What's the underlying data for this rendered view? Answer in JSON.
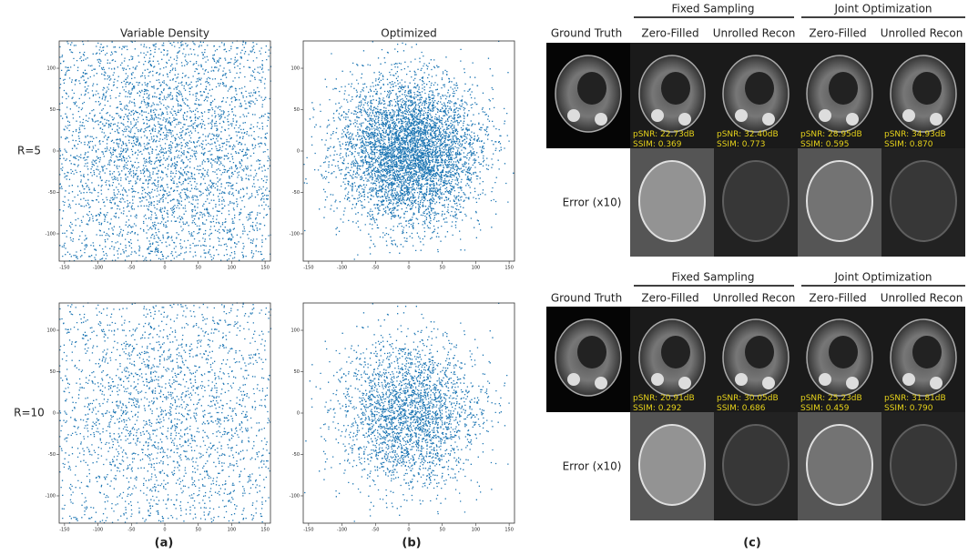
{
  "scatter": {
    "columns": [
      "Variable Density",
      "Optimized"
    ],
    "rows": [
      "R=5",
      "R=10"
    ],
    "xlim": [
      -158,
      158
    ],
    "ylim": [
      -133,
      133
    ],
    "xticks": [
      -150,
      -100,
      -50,
      0,
      50,
      100,
      150
    ],
    "yticks": [
      -100,
      -50,
      0,
      50,
      100
    ]
  },
  "recon": {
    "groups": [
      "Fixed Sampling",
      "Joint Optimization"
    ],
    "columns": [
      "Ground Truth",
      "Zero-Filled",
      "Unrolled Recon",
      "Zero-Filled",
      "Unrolled Recon"
    ],
    "error_label": "Error (x10)",
    "blocks": [
      {
        "metrics": [
          [
            "pSNR: 22.73dB",
            "SSIM: 0.369"
          ],
          [
            "pSNR: 32.40dB",
            "SSIM: 0.773"
          ],
          [
            "pSNR: 28.95dB",
            "SSIM: 0.595"
          ],
          [
            "pSNR: 34.93dB",
            "SSIM: 0.870"
          ]
        ]
      },
      {
        "metrics": [
          [
            "pSNR: 20.91dB",
            "SSIM: 0.292"
          ],
          [
            "pSNR: 30.05dB",
            "SSIM: 0.686"
          ],
          [
            "pSNR: 25.23dB",
            "SSIM: 0.459"
          ],
          [
            "pSNR: 31.81dB",
            "SSIM: 0.790"
          ]
        ]
      }
    ]
  },
  "captions": [
    "(a)",
    "(b)",
    "(c)"
  ]
}
